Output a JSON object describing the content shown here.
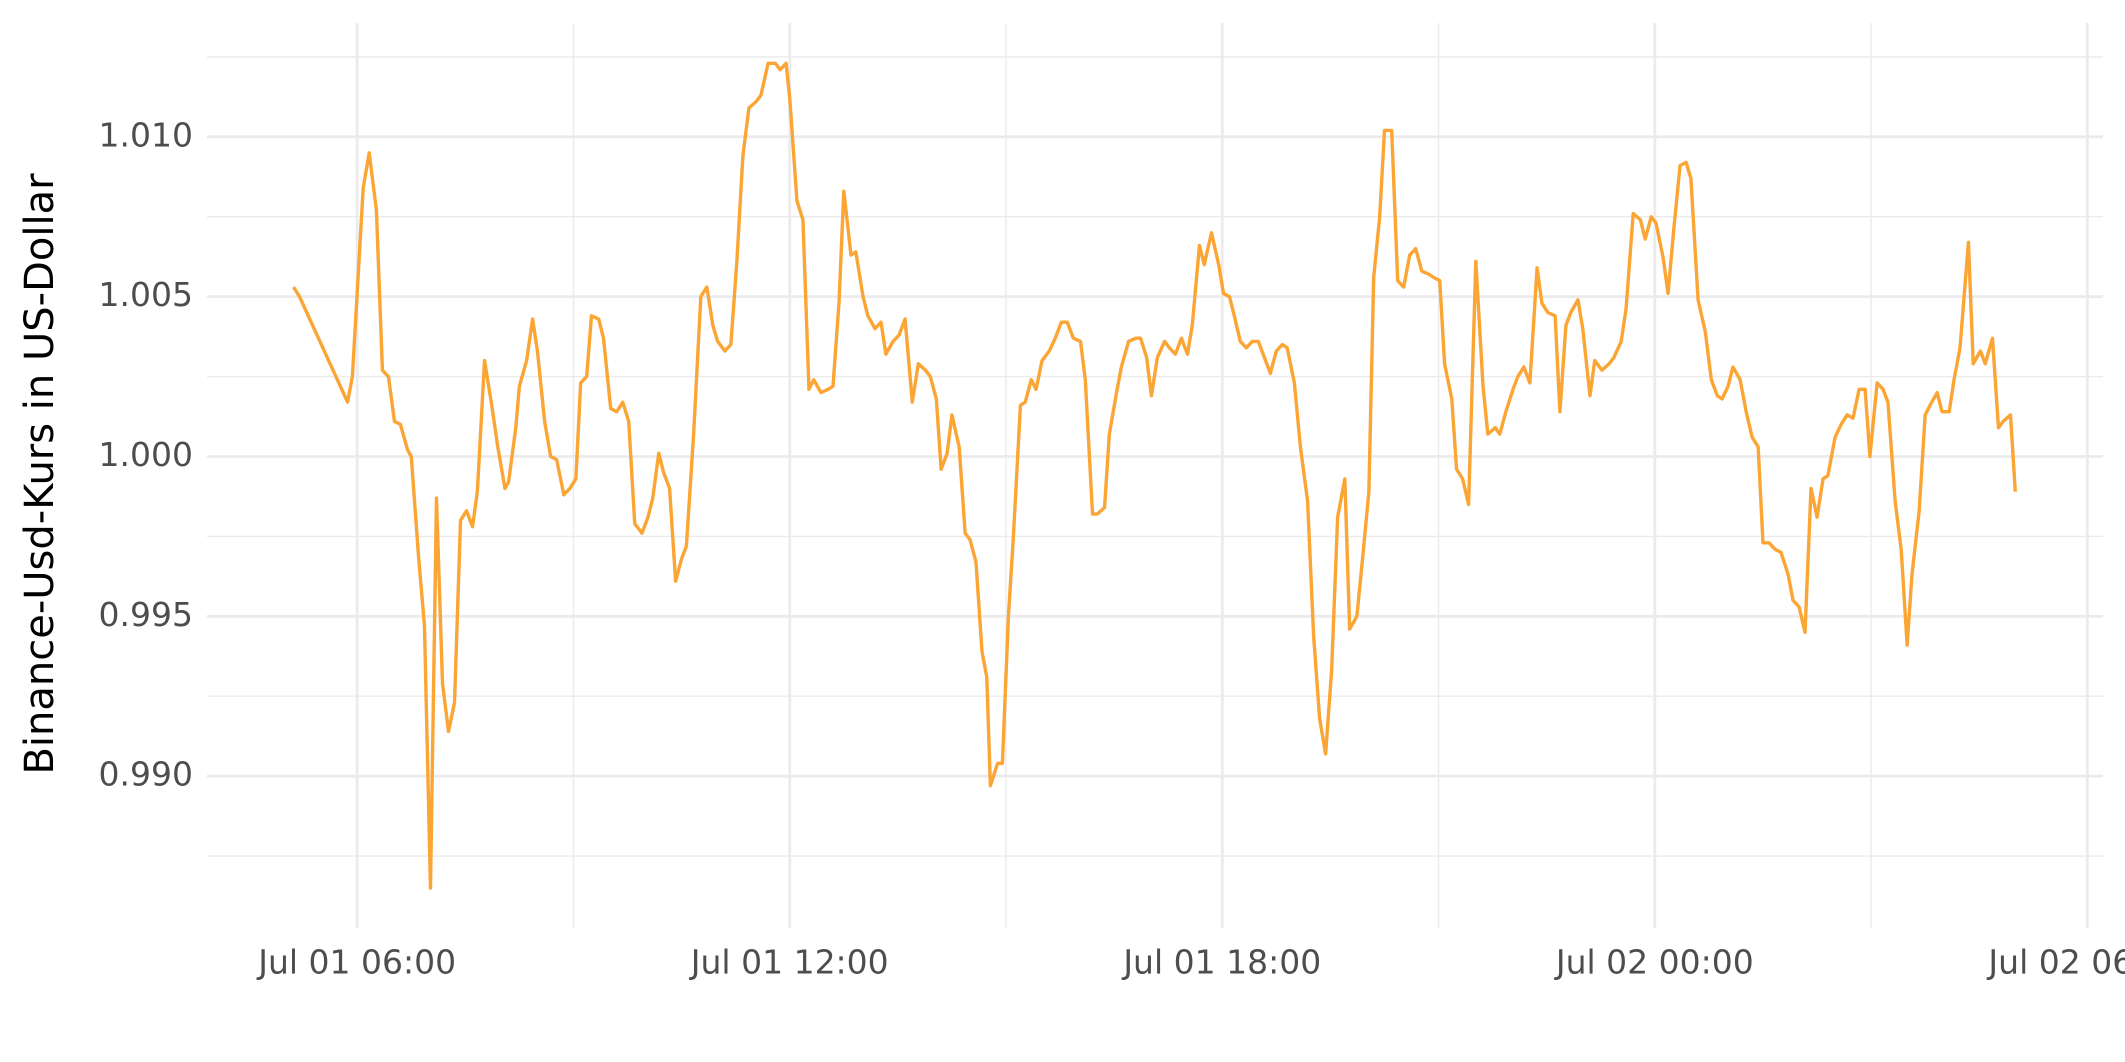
{
  "chart_data": {
    "type": "line",
    "ylabel": "Binance-Usd-Kurs in US-Dollar",
    "color": "#fba535",
    "grid": true,
    "xlim": [
      "Jul 01 03:55",
      "Jul 02 06:13"
    ],
    "xticks": [
      "Jul 01 06:00",
      "Jul 01 12:00",
      "Jul 01 18:00",
      "Jul 02 00:00",
      "Jul 02 06:00"
    ],
    "x_minor_ticks": [
      "Jul 01 09:00",
      "Jul 01 15:00",
      "Jul 01 21:00",
      "Jul 02 03:00"
    ],
    "ylim": [
      0.98525,
      1.01356
    ],
    "yticks": [
      {
        "value": 0.99,
        "label": "0.990"
      },
      0.995,
      {
        "value": 1.0,
        "label": "1.000"
      },
      1.005,
      {
        "value": 1.01,
        "label": "1.010"
      }
    ],
    "y_minor_ticks": [
      0.9875,
      0.9925,
      0.9975,
      1.0025,
      1.0075,
      1.0125
    ],
    "x": [
      "Jul 01 05:07",
      "Jul 01 05:12",
      "Jul 01 05:52",
      "Jul 01 05:56",
      "Jul 01 06:05",
      "Jul 01 06:10",
      "Jul 01 06:16",
      "Jul 01 06:21",
      "Jul 01 06:26",
      "Jul 01 06:31",
      "Jul 01 06:36",
      "Jul 01 06:42",
      "Jul 01 06:45",
      "Jul 01 06:51",
      "Jul 01 06:56",
      "Jul 01 07:01",
      "Jul 01 07:06",
      "Jul 01 07:11",
      "Jul 01 07:16",
      "Jul 01 07:21",
      "Jul 01 07:26",
      "Jul 01 07:31",
      "Jul 01 07:36",
      "Jul 01 07:40",
      "Jul 01 07:46",
      "Jul 01 07:52",
      "Jul 01 07:57",
      "Jul 01 08:03",
      "Jul 01 08:06",
      "Jul 01 08:12",
      "Jul 01 08:15",
      "Jul 01 08:21",
      "Jul 01 08:26",
      "Jul 01 08:30",
      "Jul 01 08:36",
      "Jul 01 08:41",
      "Jul 01 08:46",
      "Jul 01 08:52",
      "Jul 01 08:57",
      "Jul 01 09:02",
      "Jul 01 09:06",
      "Jul 01 09:11",
      "Jul 01 09:15",
      "Jul 01 09:21",
      "Jul 01 09:25",
      "Jul 01 09:31",
      "Jul 01 09:36",
      "Jul 01 09:41",
      "Jul 01 09:46",
      "Jul 01 09:51",
      "Jul 01 09:57",
      "Jul 01 10:02",
      "Jul 01 10:06",
      "Jul 01 10:11",
      "Jul 01 10:15",
      "Jul 01 10:20",
      "Jul 01 10:25",
      "Jul 01 10:30",
      "Jul 01 10:34",
      "Jul 01 10:40",
      "Jul 01 10:46",
      "Jul 01 10:51",
      "Jul 01 10:56",
      "Jul 01 11:00",
      "Jul 01 11:06",
      "Jul 01 11:11",
      "Jul 01 11:16",
      "Jul 01 11:21",
      "Jul 01 11:26",
      "Jul 01 11:32",
      "Jul 01 11:36",
      "Jul 01 11:42",
      "Jul 01 11:48",
      "Jul 01 11:52",
      "Jul 01 11:57",
      "Jul 01 12:00",
      "Jul 01 12:06",
      "Jul 01 12:11",
      "Jul 01 12:16",
      "Jul 01 12:20",
      "Jul 01 12:26",
      "Jul 01 12:32",
      "Jul 01 12:36",
      "Jul 01 12:41",
      "Jul 01 12:45",
      "Jul 01 12:51",
      "Jul 01 12:55",
      "Jul 01 13:01",
      "Jul 01 13:05",
      "Jul 01 13:11",
      "Jul 01 13:16",
      "Jul 01 13:20",
      "Jul 01 13:26",
      "Jul 01 13:31",
      "Jul 01 13:36",
      "Jul 01 13:42",
      "Jul 01 13:47",
      "Jul 01 13:53",
      "Jul 01 13:57",
      "Jul 01 14:02",
      "Jul 01 14:06",
      "Jul 01 14:11",
      "Jul 01 14:15",
      "Jul 01 14:21",
      "Jul 01 14:26",
      "Jul 01 14:30",
      "Jul 01 14:35",
      "Jul 01 14:40",
      "Jul 01 14:44",
      "Jul 01 14:47",
      "Jul 01 14:53",
      "Jul 01 14:57",
      "Jul 01 15:02",
      "Jul 01 15:06",
      "Jul 01 15:12",
      "Jul 01 15:16",
      "Jul 01 15:21",
      "Jul 01 15:25",
      "Jul 01 15:30",
      "Jul 01 15:36",
      "Jul 01 15:41",
      "Jul 01 15:46",
      "Jul 01 15:51",
      "Jul 01 15:56",
      "Jul 01 16:02",
      "Jul 01 16:06",
      "Jul 01 16:12",
      "Jul 01 16:16",
      "Jul 01 16:22",
      "Jul 01 16:26",
      "Jul 01 16:32",
      "Jul 01 16:36",
      "Jul 01 16:42",
      "Jul 01 16:48",
      "Jul 01 16:52",
      "Jul 01 16:57",
      "Jul 01 17:01",
      "Jul 01 17:06",
      "Jul 01 17:12",
      "Jul 01 17:16",
      "Jul 01 17:21",
      "Jul 01 17:26",
      "Jul 01 17:31",
      "Jul 01 17:35",
      "Jul 01 17:41",
      "Jul 01 17:45",
      "Jul 01 17:51",
      "Jul 01 17:57",
      "Jul 01 18:01",
      "Jul 01 18:06",
      "Jul 01 18:10",
      "Jul 01 18:15",
      "Jul 01 18:20",
      "Jul 01 18:25",
      "Jul 01 18:30",
      "Jul 01 18:35",
      "Jul 01 18:40",
      "Jul 01 18:45",
      "Jul 01 18:50",
      "Jul 01 18:54",
      "Jul 01 19:00",
      "Jul 01 19:05",
      "Jul 01 19:11",
      "Jul 01 19:16",
      "Jul 01 19:21",
      "Jul 01 19:26",
      "Jul 01 19:31",
      "Jul 01 19:36",
      "Jul 01 19:42",
      "Jul 01 19:46",
      "Jul 01 19:52",
      "Jul 01 19:57",
      "Jul 01 20:02",
      "Jul 01 20:06",
      "Jul 01 20:11",
      "Jul 01 20:15",
      "Jul 01 20:21",
      "Jul 01 20:26",
      "Jul 01 20:31",
      "Jul 01 20:36",
      "Jul 01 20:41",
      "Jul 01 20:46",
      "Jul 01 20:52",
      "Jul 01 20:56",
      "Jul 01 21:01",
      "Jul 01 21:05",
      "Jul 01 21:11",
      "Jul 01 21:15",
      "Jul 01 21:20",
      "Jul 01 21:25",
      "Jul 01 21:31",
      "Jul 01 21:37",
      "Jul 01 21:41",
      "Jul 01 21:47",
      "Jul 01 21:51",
      "Jul 01 21:56",
      "Jul 01 22:02",
      "Jul 01 22:06",
      "Jul 01 22:11",
      "Jul 01 22:16",
      "Jul 01 22:22",
      "Jul 01 22:26",
      "Jul 01 22:31",
      "Jul 01 22:37",
      "Jul 01 22:41",
      "Jul 01 22:46",
      "Jul 01 22:50",
      "Jul 01 22:56",
      "Jul 01 23:00",
      "Jul 01 23:06",
      "Jul 01 23:10",
      "Jul 01 23:16",
      "Jul 01 23:22",
      "Jul 01 23:26",
      "Jul 01 23:32",
      "Jul 01 23:36",
      "Jul 01 23:42",
      "Jul 01 23:48",
      "Jul 01 23:52",
      "Jul 01 23:57",
      "Jul 02 00:01",
      "Jul 02 00:07",
      "Jul 02 00:11",
      "Jul 02 00:16",
      "Jul 02 00:21",
      "Jul 02 00:26",
      "Jul 02 00:30",
      "Jul 02 00:36",
      "Jul 02 00:42",
      "Jul 02 00:47",
      "Jul 02 00:52",
      "Jul 02 00:56",
      "Jul 02 01:01",
      "Jul 02 01:05",
      "Jul 02 01:11",
      "Jul 02 01:16",
      "Jul 02 01:21",
      "Jul 02 01:26",
      "Jul 02 01:30",
      "Jul 02 01:35",
      "Jul 02 01:40",
      "Jul 02 01:45",
      "Jul 02 01:51",
      "Jul 02 01:55",
      "Jul 02 02:00",
      "Jul 02 02:05",
      "Jul 02 02:10",
      "Jul 02 02:15",
      "Jul 02 02:20",
      "Jul 02 02:24",
      "Jul 02 02:30",
      "Jul 02 02:35",
      "Jul 02 02:40",
      "Jul 02 02:45",
      "Jul 02 02:50",
      "Jul 02 02:55",
      "Jul 02 02:59",
      "Jul 02 03:05",
      "Jul 02 03:10",
      "Jul 02 03:14",
      "Jul 02 03:20",
      "Jul 02 03:25",
      "Jul 02 03:30",
      "Jul 02 03:34",
      "Jul 02 03:40",
      "Jul 02 03:45",
      "Jul 02 03:49",
      "Jul 02 03:55",
      "Jul 02 03:59",
      "Jul 02 04:05",
      "Jul 02 04:09",
      "Jul 02 04:14",
      "Jul 02 04:21",
      "Jul 02 04:25",
      "Jul 02 04:31",
      "Jul 02 04:35",
      "Jul 02 04:41",
      "Jul 02 04:46",
      "Jul 02 04:50",
      "Jul 02 04:56",
      "Jul 02 05:00"
    ],
    "values": [
      1.0053,
      1.005,
      1.0017,
      1.0025,
      1.0084,
      1.0095,
      1.0077,
      1.0027,
      1.0025,
      1.0011,
      1.001,
      1.0002,
      1.0,
      0.9969,
      0.9947,
      0.9865,
      0.9987,
      0.9929,
      0.9914,
      0.9923,
      0.998,
      0.9983,
      0.9978,
      0.9989,
      1.003,
      1.0016,
      1.0003,
      0.999,
      0.9992,
      1.0009,
      1.0022,
      1.003,
      1.0043,
      1.0033,
      1.0011,
      1.0,
      0.9999,
      0.9988,
      0.999,
      0.9993,
      1.0023,
      1.0025,
      1.0044,
      1.0043,
      1.0037,
      1.0015,
      1.0014,
      1.0017,
      1.0011,
      0.9979,
      0.9976,
      0.9981,
      0.9987,
      1.0001,
      0.9995,
      0.999,
      0.9961,
      0.9968,
      0.9972,
      1.0007,
      1.005,
      1.0053,
      1.0041,
      1.0036,
      1.0033,
      1.0035,
      1.0061,
      1.0094,
      1.0109,
      1.0111,
      1.0113,
      1.0123,
      1.0123,
      1.0121,
      1.0123,
      1.0112,
      1.008,
      1.0074,
      1.0021,
      1.0024,
      1.002,
      1.0021,
      1.0022,
      1.0048,
      1.0083,
      1.0063,
      1.0064,
      1.005,
      1.0044,
      1.004,
      1.0042,
      1.0032,
      1.0036,
      1.0038,
      1.0043,
      1.0017,
      1.0029,
      1.0027,
      1.0025,
      1.0018,
      0.9996,
      1.0001,
      1.0013,
      1.0003,
      0.9976,
      0.9974,
      0.9967,
      0.9939,
      0.9931,
      0.9897,
      0.9904,
      0.9904,
      0.995,
      0.9974,
      1.0016,
      1.0017,
      1.0024,
      1.0021,
      1.003,
      1.0033,
      1.0037,
      1.0042,
      1.0042,
      1.0037,
      1.0036,
      1.0024,
      0.9982,
      0.9982,
      0.9984,
      1.0007,
      1.002,
      1.0028,
      1.0036,
      1.0037,
      1.0037,
      1.0031,
      1.0019,
      1.0031,
      1.0036,
      1.0034,
      1.0032,
      1.0037,
      1.0032,
      1.0041,
      1.0066,
      1.006,
      1.007,
      1.006,
      1.0051,
      1.005,
      1.0044,
      1.0036,
      1.0034,
      1.0036,
      1.0036,
      1.0031,
      1.0026,
      1.0033,
      1.0035,
      1.0034,
      1.0023,
      1.0003,
      0.9986,
      0.9944,
      0.9918,
      0.9907,
      0.9933,
      0.9981,
      0.9993,
      0.9946,
      0.995,
      0.9969,
      0.9989,
      1.0056,
      1.0075,
      1.0102,
      1.0102,
      1.0055,
      1.0053,
      1.0063,
      1.0065,
      1.0058,
      1.0057,
      1.0056,
      1.0055,
      1.0029,
      1.0018,
      0.9996,
      0.9993,
      0.9985,
      1.0061,
      1.0022,
      1.0007,
      1.0009,
      1.0007,
      1.0014,
      1.0021,
      1.0025,
      1.0028,
      1.0023,
      1.0059,
      1.0048,
      1.0045,
      1.0044,
      1.0014,
      1.0041,
      1.0045,
      1.0049,
      1.004,
      1.0019,
      1.003,
      1.0027,
      1.0029,
      1.0031,
      1.0036,
      1.0046,
      1.0076,
      1.0074,
      1.0068,
      1.0075,
      1.0073,
      1.0062,
      1.0051,
      1.0072,
      1.0091,
      1.0092,
      1.0087,
      1.0049,
      1.0039,
      1.0024,
      1.0019,
      1.0018,
      1.0022,
      1.0028,
      1.0024,
      1.0014,
      1.0006,
      1.0003,
      0.9973,
      0.9973,
      0.9971,
      0.997,
      0.9963,
      0.9955,
      0.9953,
      0.9945,
      0.999,
      0.9981,
      0.9993,
      0.9994,
      1.0006,
      1.001,
      1.0013,
      1.0012,
      1.0021,
      1.0021,
      1.0,
      1.0023,
      1.0021,
      1.0017,
      0.9986,
      0.9971,
      0.9941,
      0.9963,
      0.9983,
      1.0013,
      1.0016,
      1.002,
      1.0014,
      1.0014,
      1.0024,
      1.0034,
      1.0067,
      1.0029,
      1.0033,
      1.0029,
      1.0037,
      1.0009,
      1.0011,
      1.0013,
      0.9989
    ]
  }
}
